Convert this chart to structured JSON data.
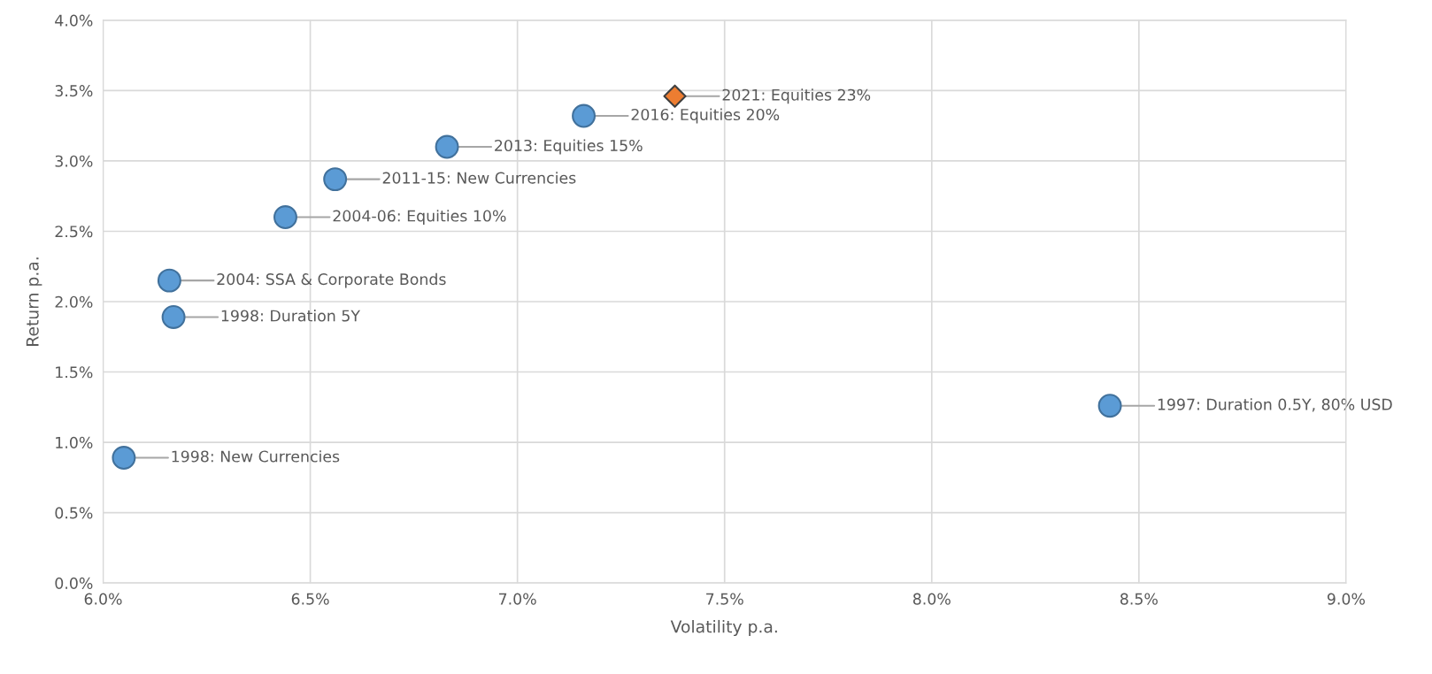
{
  "chart_data": {
    "type": "scatter",
    "xlabel": "Volatility p.a.",
    "ylabel": "Return p.a.",
    "series": [
      {
        "color": "#5b9bd5",
        "marker": "circle",
        "x": [
          6.05,
          6.17,
          6.16,
          6.44,
          6.56,
          6.83,
          7.16,
          8.43
        ],
        "values": [
          0.89,
          1.89,
          2.15,
          2.6,
          2.87,
          3.1,
          3.32,
          1.26
        ]
      },
      {
        "color": "#ed7d31",
        "marker": "diamond",
        "x": [
          7.38
        ],
        "values": [
          3.46
        ]
      }
    ],
    "annotations": [
      {
        "text": "1998: New Currencies",
        "x": 6.05,
        "y": 0.89
      },
      {
        "text": "1998: Duration 5Y",
        "x": 6.17,
        "y": 1.89
      },
      {
        "text": "2004: SSA & Corporate Bonds",
        "x": 6.16,
        "y": 2.15
      },
      {
        "text": "2004-06: Equities 10%",
        "x": 6.44,
        "y": 2.6
      },
      {
        "text": "2011-15: New Currencies",
        "x": 6.56,
        "y": 2.87
      },
      {
        "text": "2013: Equities 15%",
        "x": 6.83,
        "y": 3.1
      },
      {
        "text": "2016: Equities 20%",
        "x": 7.16,
        "y": 3.32
      },
      {
        "text": "1997: Duration 0.5Y, 80% USD",
        "x": 8.43,
        "y": 1.26
      },
      {
        "text": "2021: Equities 23%",
        "x": 7.38,
        "y": 3.46
      }
    ],
    "xlim": [
      6.0,
      9.0
    ],
    "xticks": [
      {
        "value": 6.0,
        "label": "6.0%"
      },
      {
        "value": 6.5,
        "label": "6.5%"
      },
      {
        "value": 7.0,
        "label": "7.0%"
      },
      {
        "value": 7.5,
        "label": "7.5%"
      },
      {
        "value": 8.0,
        "label": "8.0%"
      },
      {
        "value": 8.5,
        "label": "8.5%"
      },
      {
        "value": 9.0,
        "label": "9.0%"
      }
    ],
    "ylim": [
      0.0,
      4.0
    ],
    "yticks": [
      {
        "value": 0.0,
        "label": "0.0%"
      },
      {
        "value": 0.5,
        "label": "0.5%"
      },
      {
        "value": 1.0,
        "label": "1.0%"
      },
      {
        "value": 1.5,
        "label": "1.5%"
      },
      {
        "value": 2.0,
        "label": "2.0%"
      },
      {
        "value": 2.5,
        "label": "2.5%"
      },
      {
        "value": 3.0,
        "label": "3.0%"
      },
      {
        "value": 3.5,
        "label": "3.5%"
      },
      {
        "value": 4.0,
        "label": "4.0%"
      }
    ],
    "grid": true
  }
}
